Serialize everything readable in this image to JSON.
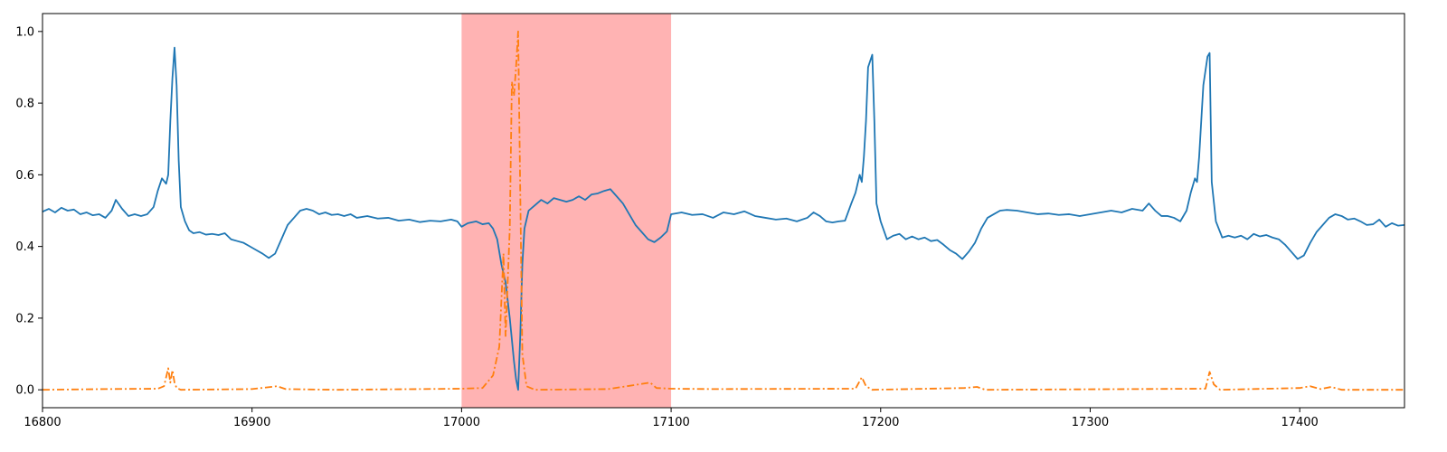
{
  "chart_data": {
    "type": "line",
    "title": "",
    "xlabel": "",
    "ylabel": "",
    "xlim": [
      16800,
      17450
    ],
    "ylim": [
      -0.05,
      1.05
    ],
    "x_ticks": [
      16800,
      16900,
      17000,
      17100,
      17200,
      17300,
      17400
    ],
    "x_tick_labels": [
      "16800",
      "16900",
      "17000",
      "17100",
      "17200",
      "17300",
      "17400"
    ],
    "y_ticks": [
      0.0,
      0.2,
      0.4,
      0.6,
      0.8,
      1.0
    ],
    "y_tick_labels": [
      "0.0",
      "0.2",
      "0.4",
      "0.6",
      "0.8",
      "1.0"
    ],
    "grid": false,
    "legend": "none",
    "highlight_region": {
      "x": [
        17000,
        17100
      ],
      "color": "#ff9999"
    },
    "series": [
      {
        "color": "#1f77b4",
        "style": "solid",
        "points": [
          [
            16800,
            0.497
          ],
          [
            16803,
            0.505
          ],
          [
            16806,
            0.495
          ],
          [
            16809,
            0.508
          ],
          [
            16812,
            0.5
          ],
          [
            16815,
            0.503
          ],
          [
            16818,
            0.49
          ],
          [
            16821,
            0.495
          ],
          [
            16824,
            0.487
          ],
          [
            16827,
            0.49
          ],
          [
            16830,
            0.48
          ],
          [
            16833,
            0.5
          ],
          [
            16835,
            0.53
          ],
          [
            16838,
            0.505
          ],
          [
            16841,
            0.485
          ],
          [
            16844,
            0.49
          ],
          [
            16847,
            0.485
          ],
          [
            16850,
            0.49
          ],
          [
            16853,
            0.51
          ],
          [
            16855,
            0.555
          ],
          [
            16857,
            0.59
          ],
          [
            16859,
            0.575
          ],
          [
            16860,
            0.6
          ],
          [
            16861,
            0.75
          ],
          [
            16862,
            0.87
          ],
          [
            16863,
            0.955
          ],
          [
            16864,
            0.85
          ],
          [
            16865,
            0.64
          ],
          [
            16866,
            0.51
          ],
          [
            16868,
            0.47
          ],
          [
            16870,
            0.445
          ],
          [
            16872,
            0.437
          ],
          [
            16875,
            0.44
          ],
          [
            16878,
            0.433
          ],
          [
            16881,
            0.435
          ],
          [
            16884,
            0.432
          ],
          [
            16887,
            0.437
          ],
          [
            16890,
            0.42
          ],
          [
            16893,
            0.415
          ],
          [
            16896,
            0.41
          ],
          [
            16899,
            0.4
          ],
          [
            16902,
            0.39
          ],
          [
            16905,
            0.38
          ],
          [
            16908,
            0.368
          ],
          [
            16911,
            0.38
          ],
          [
            16914,
            0.42
          ],
          [
            16917,
            0.46
          ],
          [
            16920,
            0.48
          ],
          [
            16923,
            0.5
          ],
          [
            16926,
            0.505
          ],
          [
            16929,
            0.5
          ],
          [
            16932,
            0.49
          ],
          [
            16935,
            0.495
          ],
          [
            16938,
            0.488
          ],
          [
            16941,
            0.49
          ],
          [
            16944,
            0.485
          ],
          [
            16947,
            0.49
          ],
          [
            16950,
            0.48
          ],
          [
            16955,
            0.485
          ],
          [
            16960,
            0.478
          ],
          [
            16965,
            0.48
          ],
          [
            16970,
            0.472
          ],
          [
            16975,
            0.475
          ],
          [
            16980,
            0.468
          ],
          [
            16985,
            0.472
          ],
          [
            16990,
            0.47
          ],
          [
            16995,
            0.475
          ],
          [
            16998,
            0.47
          ],
          [
            17000,
            0.455
          ],
          [
            17003,
            0.465
          ],
          [
            17007,
            0.47
          ],
          [
            17010,
            0.462
          ],
          [
            17013,
            0.465
          ],
          [
            17015,
            0.45
          ],
          [
            17017,
            0.42
          ],
          [
            17019,
            0.35
          ],
          [
            17021,
            0.3
          ],
          [
            17023,
            0.2
          ],
          [
            17025,
            0.08
          ],
          [
            17026,
            0.03
          ],
          [
            17027,
            0.0
          ],
          [
            17028,
            0.15
          ],
          [
            17029,
            0.35
          ],
          [
            17030,
            0.45
          ],
          [
            17032,
            0.5
          ],
          [
            17035,
            0.515
          ],
          [
            17038,
            0.53
          ],
          [
            17041,
            0.52
          ],
          [
            17044,
            0.535
          ],
          [
            17047,
            0.53
          ],
          [
            17050,
            0.525
          ],
          [
            17053,
            0.53
          ],
          [
            17056,
            0.54
          ],
          [
            17059,
            0.53
          ],
          [
            17062,
            0.545
          ],
          [
            17065,
            0.548
          ],
          [
            17068,
            0.555
          ],
          [
            17071,
            0.56
          ],
          [
            17074,
            0.54
          ],
          [
            17077,
            0.52
          ],
          [
            17080,
            0.49
          ],
          [
            17083,
            0.46
          ],
          [
            17086,
            0.44
          ],
          [
            17089,
            0.42
          ],
          [
            17092,
            0.412
          ],
          [
            17095,
            0.425
          ],
          [
            17098,
            0.442
          ],
          [
            17100,
            0.49
          ],
          [
            17105,
            0.495
          ],
          [
            17110,
            0.488
          ],
          [
            17115,
            0.49
          ],
          [
            17120,
            0.48
          ],
          [
            17125,
            0.495
          ],
          [
            17130,
            0.49
          ],
          [
            17135,
            0.498
          ],
          [
            17140,
            0.485
          ],
          [
            17145,
            0.48
          ],
          [
            17150,
            0.475
          ],
          [
            17155,
            0.478
          ],
          [
            17160,
            0.47
          ],
          [
            17165,
            0.48
          ],
          [
            17168,
            0.495
          ],
          [
            17171,
            0.485
          ],
          [
            17174,
            0.47
          ],
          [
            17177,
            0.467
          ],
          [
            17180,
            0.47
          ],
          [
            17183,
            0.472
          ],
          [
            17186,
            0.52
          ],
          [
            17188,
            0.55
          ],
          [
            17190,
            0.6
          ],
          [
            17191,
            0.58
          ],
          [
            17192,
            0.65
          ],
          [
            17193,
            0.75
          ],
          [
            17194,
            0.9
          ],
          [
            17196,
            0.935
          ],
          [
            17197,
            0.75
          ],
          [
            17198,
            0.52
          ],
          [
            17200,
            0.47
          ],
          [
            17203,
            0.42
          ],
          [
            17206,
            0.43
          ],
          [
            17209,
            0.435
          ],
          [
            17212,
            0.42
          ],
          [
            17215,
            0.428
          ],
          [
            17218,
            0.42
          ],
          [
            17221,
            0.425
          ],
          [
            17224,
            0.415
          ],
          [
            17227,
            0.418
          ],
          [
            17230,
            0.405
          ],
          [
            17233,
            0.39
          ],
          [
            17236,
            0.38
          ],
          [
            17239,
            0.365
          ],
          [
            17242,
            0.385
          ],
          [
            17245,
            0.41
          ],
          [
            17248,
            0.45
          ],
          [
            17251,
            0.48
          ],
          [
            17254,
            0.49
          ],
          [
            17257,
            0.5
          ],
          [
            17260,
            0.502
          ],
          [
            17265,
            0.5
          ],
          [
            17270,
            0.495
          ],
          [
            17275,
            0.49
          ],
          [
            17280,
            0.492
          ],
          [
            17285,
            0.488
          ],
          [
            17290,
            0.49
          ],
          [
            17295,
            0.485
          ],
          [
            17300,
            0.49
          ],
          [
            17305,
            0.495
          ],
          [
            17310,
            0.5
          ],
          [
            17315,
            0.495
          ],
          [
            17320,
            0.505
          ],
          [
            17325,
            0.5
          ],
          [
            17328,
            0.52
          ],
          [
            17331,
            0.5
          ],
          [
            17334,
            0.485
          ],
          [
            17337,
            0.485
          ],
          [
            17340,
            0.48
          ],
          [
            17343,
            0.47
          ],
          [
            17346,
            0.5
          ],
          [
            17348,
            0.55
          ],
          [
            17350,
            0.59
          ],
          [
            17351,
            0.58
          ],
          [
            17352,
            0.65
          ],
          [
            17354,
            0.85
          ],
          [
            17356,
            0.93
          ],
          [
            17357,
            0.94
          ],
          [
            17358,
            0.58
          ],
          [
            17360,
            0.47
          ],
          [
            17363,
            0.425
          ],
          [
            17366,
            0.43
          ],
          [
            17369,
            0.425
          ],
          [
            17372,
            0.43
          ],
          [
            17375,
            0.42
          ],
          [
            17378,
            0.435
          ],
          [
            17381,
            0.428
          ],
          [
            17384,
            0.432
          ],
          [
            17387,
            0.425
          ],
          [
            17390,
            0.42
          ],
          [
            17393,
            0.405
          ],
          [
            17396,
            0.385
          ],
          [
            17399,
            0.365
          ],
          [
            17402,
            0.375
          ],
          [
            17405,
            0.41
          ],
          [
            17408,
            0.44
          ],
          [
            17411,
            0.46
          ],
          [
            17414,
            0.48
          ],
          [
            17417,
            0.49
          ],
          [
            17420,
            0.485
          ],
          [
            17423,
            0.475
          ],
          [
            17426,
            0.478
          ],
          [
            17429,
            0.47
          ],
          [
            17432,
            0.46
          ],
          [
            17435,
            0.462
          ],
          [
            17438,
            0.475
          ],
          [
            17441,
            0.455
          ],
          [
            17444,
            0.465
          ],
          [
            17447,
            0.458
          ],
          [
            17450,
            0.46
          ]
        ]
      },
      {
        "color": "#ff7f0e",
        "style": "dashdot",
        "points": [
          [
            16800,
            0.0
          ],
          [
            16830,
            0.002
          ],
          [
            16855,
            0.003
          ],
          [
            16858,
            0.01
          ],
          [
            16860,
            0.06
          ],
          [
            16861,
            0.02
          ],
          [
            16862,
            0.055
          ],
          [
            16863,
            0.02
          ],
          [
            16864,
            0.005
          ],
          [
            16866,
            0.0
          ],
          [
            16900,
            0.002
          ],
          [
            16912,
            0.01
          ],
          [
            16916,
            0.002
          ],
          [
            16940,
            0.0
          ],
          [
            17000,
            0.003
          ],
          [
            17010,
            0.005
          ],
          [
            17015,
            0.04
          ],
          [
            17018,
            0.12
          ],
          [
            17020,
            0.38
          ],
          [
            17021,
            0.15
          ],
          [
            17022,
            0.3
          ],
          [
            17023,
            0.45
          ],
          [
            17024,
            0.86
          ],
          [
            17025,
            0.82
          ],
          [
            17026,
            0.9
          ],
          [
            17027,
            1.0
          ],
          [
            17028,
            0.55
          ],
          [
            17029,
            0.1
          ],
          [
            17031,
            0.01
          ],
          [
            17035,
            0.0
          ],
          [
            17070,
            0.002
          ],
          [
            17090,
            0.02
          ],
          [
            17093,
            0.005
          ],
          [
            17100,
            0.003
          ],
          [
            17120,
            0.002
          ],
          [
            17188,
            0.003
          ],
          [
            17191,
            0.035
          ],
          [
            17193,
            0.01
          ],
          [
            17196,
            0.0
          ],
          [
            17240,
            0.005
          ],
          [
            17246,
            0.008
          ],
          [
            17250,
            0.0
          ],
          [
            17355,
            0.003
          ],
          [
            17357,
            0.05
          ],
          [
            17359,
            0.015
          ],
          [
            17362,
            0.0
          ],
          [
            17400,
            0.005
          ],
          [
            17405,
            0.01
          ],
          [
            17410,
            0.002
          ],
          [
            17415,
            0.008
          ],
          [
            17420,
            0.0
          ],
          [
            17450,
            0.0
          ]
        ]
      }
    ]
  }
}
